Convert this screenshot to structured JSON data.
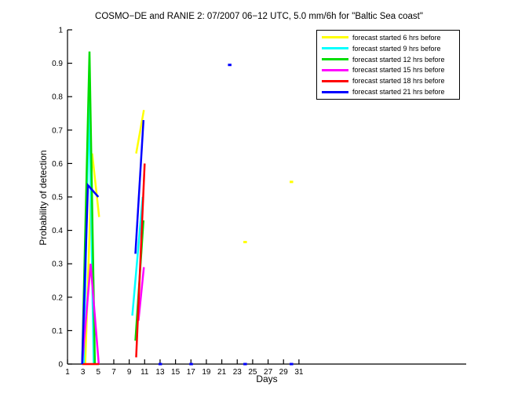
{
  "chart_data": {
    "type": "line",
    "title": "COSMO−DE and RANIE 2: 07/2007 06−12 UTC, 5.0 mm/6h for \"Baltic Sea coast\"",
    "xlabel": "Days",
    "ylabel": "Probability of detection",
    "xlim": [
      1,
      32
    ],
    "ylim": [
      0,
      1
    ],
    "xticks": [
      1,
      3,
      5,
      7,
      9,
      11,
      13,
      15,
      17,
      19,
      21,
      23,
      25,
      27,
      29,
      31
    ],
    "yticks": [
      0,
      0.1,
      0.2,
      0.3,
      0.4,
      0.5,
      0.6,
      0.7,
      0.8,
      0.9,
      1
    ],
    "ytick_labels": [
      "0",
      "0.1",
      "0.2",
      "0.3",
      "0.4",
      "0.5",
      "0.6",
      "0.7",
      "0.8",
      "0.9",
      "1"
    ],
    "grid": false,
    "legend_position": "top-right",
    "axis_color": "#000000",
    "series": [
      {
        "name": "forecast started 6 hrs before",
        "color": "#FFFF00",
        "segments": [
          [
            [
              3.3,
              0.0
            ],
            [
              4.2,
              0.63
            ],
            [
              5.1,
              0.44
            ]
          ],
          [
            [
              9.9,
              0.63
            ],
            [
              10.9,
              0.76
            ]
          ]
        ],
        "points": [
          [
            24,
            0.365
          ],
          [
            30,
            0.545
          ]
        ]
      },
      {
        "name": "forecast started 9 hrs before",
        "color": "#00FFFF",
        "segments": [
          [
            [
              3.1,
              0.0
            ],
            [
              3.8,
              0.8
            ],
            [
              4.4,
              0.0
            ]
          ],
          [
            [
              9.4,
              0.145
            ],
            [
              10.75,
              0.5
            ]
          ]
        ],
        "points": []
      },
      {
        "name": "forecast started 12 hrs before",
        "color": "#00DD00",
        "segments": [
          [
            [
              2.9,
              0.0
            ],
            [
              3.85,
              0.935
            ],
            [
              4.55,
              0.0
            ]
          ],
          [
            [
              9.8,
              0.07
            ],
            [
              10.85,
              0.43
            ]
          ]
        ],
        "points": []
      },
      {
        "name": "forecast started 15 hrs before",
        "color": "#FF00FF",
        "segments": [
          [
            [
              2.9,
              0.0
            ],
            [
              4.0,
              0.3
            ],
            [
              5.05,
              0.0
            ]
          ],
          [
            [
              10.2,
              0.13
            ],
            [
              10.9,
              0.29
            ]
          ]
        ],
        "points": []
      },
      {
        "name": "forecast started 18 hrs before",
        "color": "#FF0000",
        "segments": [
          [
            [
              2.9,
              0.0
            ],
            [
              5.1,
              0.0
            ]
          ],
          [
            [
              9.9,
              0.02
            ],
            [
              11.0,
              0.6
            ]
          ]
        ],
        "points": []
      },
      {
        "name": "forecast started 21 hrs before",
        "color": "#0000FF",
        "segments": [
          [
            [
              2.9,
              0.0
            ],
            [
              3.65,
              0.535
            ],
            [
              5.0,
              0.5
            ]
          ],
          [
            [
              9.8,
              0.33
            ],
            [
              10.85,
              0.73
            ]
          ]
        ],
        "points": [
          [
            13,
            0
          ],
          [
            17,
            0
          ],
          [
            22,
            0.895
          ],
          [
            24,
            0
          ],
          [
            30,
            0
          ]
        ]
      }
    ]
  }
}
